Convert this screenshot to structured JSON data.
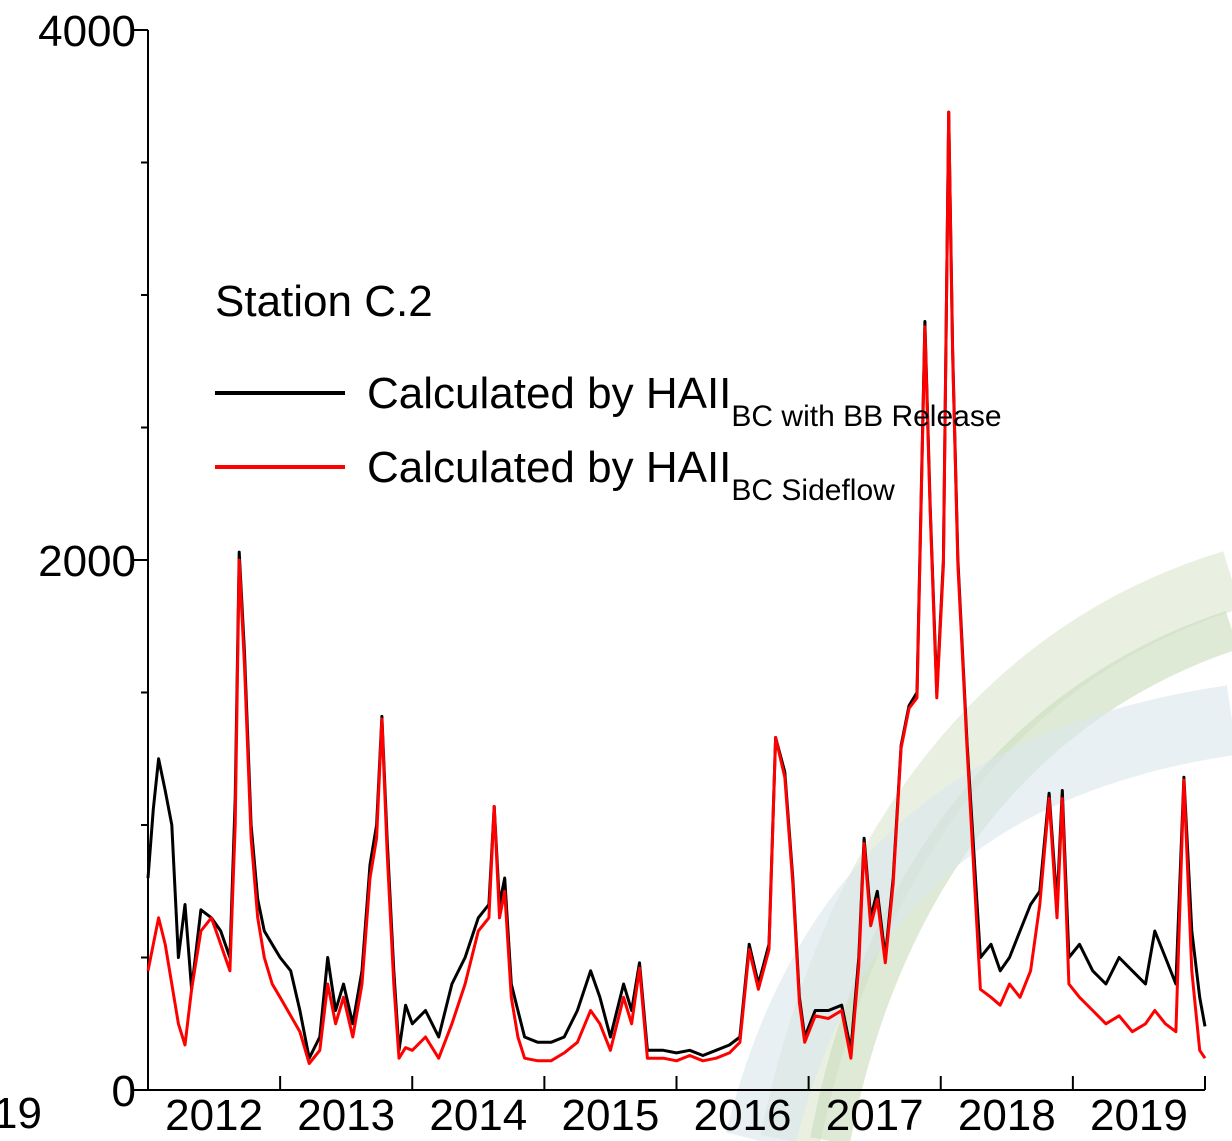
{
  "chart_data": {
    "type": "line",
    "legend_title": "Station C.2",
    "clipped_label": "19",
    "xlim": [
      2011,
      2019
    ],
    "xticks": [
      2012,
      2013,
      2014,
      2015,
      2016,
      2017,
      2018,
      2019
    ],
    "ylim": [
      0,
      4000
    ],
    "yticks": [
      0,
      2000,
      4000
    ],
    "yminor_ticks": [
      500,
      1000,
      1500,
      2500,
      3000,
      3500
    ],
    "x": [
      2011.0,
      2011.04,
      2011.08,
      2011.13,
      2011.18,
      2011.23,
      2011.28,
      2011.33,
      2011.4,
      2011.48,
      2011.55,
      2011.62,
      2011.66,
      2011.69,
      2011.73,
      2011.78,
      2011.83,
      2011.88,
      2011.94,
      2012.0,
      2012.08,
      2012.15,
      2012.22,
      2012.3,
      2012.36,
      2012.42,
      2012.48,
      2012.55,
      2012.62,
      2012.68,
      2012.73,
      2012.77,
      2012.81,
      2012.86,
      2012.9,
      2012.95,
      2013.0,
      2013.1,
      2013.2,
      2013.3,
      2013.4,
      2013.5,
      2013.58,
      2013.62,
      2013.66,
      2013.7,
      2013.75,
      2013.8,
      2013.85,
      2013.95,
      2014.05,
      2014.15,
      2014.25,
      2014.35,
      2014.42,
      2014.5,
      2014.6,
      2014.66,
      2014.72,
      2014.78,
      2014.9,
      2015.0,
      2015.1,
      2015.2,
      2015.3,
      2015.4,
      2015.48,
      2015.55,
      2015.62,
      2015.7,
      2015.75,
      2015.82,
      2015.88,
      2015.93,
      2015.97,
      2016.05,
      2016.15,
      2016.25,
      2016.32,
      2016.38,
      2016.42,
      2016.47,
      2016.52,
      2016.58,
      2016.64,
      2016.7,
      2016.76,
      2016.82,
      2016.88,
      2016.92,
      2016.97,
      2017.02,
      2017.06,
      2017.09,
      2017.13,
      2017.2,
      2017.3,
      2017.38,
      2017.45,
      2017.52,
      2017.6,
      2017.68,
      2017.75,
      2017.82,
      2017.88,
      2017.92,
      2017.97,
      2018.05,
      2018.15,
      2018.25,
      2018.35,
      2018.45,
      2018.55,
      2018.62,
      2018.7,
      2018.78,
      2018.84,
      2018.9,
      2018.96,
      2019.0
    ],
    "series": [
      {
        "name": "Calculated by HAII",
        "name_subscript": "BC with BB Release",
        "color": "#000000",
        "values": [
          800,
          1060,
          1250,
          1130,
          1000,
          500,
          700,
          380,
          680,
          650,
          600,
          500,
          1100,
          2030,
          1650,
          1000,
          720,
          600,
          550,
          500,
          450,
          300,
          120,
          200,
          500,
          300,
          400,
          250,
          450,
          850,
          1000,
          1410,
          950,
          450,
          150,
          320,
          250,
          300,
          200,
          400,
          500,
          650,
          700,
          1070,
          700,
          800,
          400,
          300,
          200,
          180,
          180,
          200,
          300,
          450,
          350,
          200,
          400,
          300,
          480,
          150,
          150,
          140,
          150,
          130,
          150,
          170,
          200,
          550,
          400,
          550,
          1330,
          1200,
          800,
          350,
          200,
          300,
          300,
          320,
          150,
          500,
          950,
          650,
          750,
          500,
          800,
          1300,
          1450,
          1500,
          2900,
          2200,
          1500,
          2000,
          3690,
          2800,
          2000,
          1300,
          500,
          550,
          450,
          500,
          600,
          700,
          750,
          1120,
          700,
          1130,
          500,
          550,
          450,
          400,
          500,
          450,
          400,
          600,
          500,
          400,
          1180,
          600,
          350,
          240
        ]
      },
      {
        "name": "Calculated by HAII",
        "name_subscript": "BC Sideflow",
        "color": "#ff0000",
        "values": [
          450,
          550,
          650,
          550,
          400,
          250,
          170,
          380,
          600,
          650,
          550,
          450,
          1000,
          2000,
          1600,
          950,
          650,
          500,
          400,
          350,
          280,
          220,
          100,
          150,
          400,
          250,
          350,
          200,
          400,
          800,
          950,
          1400,
          900,
          400,
          120,
          160,
          150,
          200,
          120,
          250,
          400,
          600,
          650,
          1070,
          650,
          750,
          350,
          200,
          120,
          110,
          110,
          140,
          180,
          300,
          250,
          150,
          350,
          250,
          460,
          120,
          120,
          110,
          130,
          110,
          120,
          140,
          180,
          530,
          380,
          530,
          1330,
          1180,
          780,
          330,
          180,
          280,
          270,
          300,
          120,
          470,
          930,
          620,
          720,
          480,
          780,
          1290,
          1440,
          1480,
          2880,
          2180,
          1480,
          1980,
          3690,
          2780,
          1980,
          1280,
          380,
          350,
          320,
          400,
          350,
          450,
          700,
          1100,
          650,
          1100,
          400,
          350,
          300,
          250,
          280,
          220,
          250,
          300,
          250,
          220,
          1170,
          450,
          150,
          120
        ]
      }
    ]
  }
}
